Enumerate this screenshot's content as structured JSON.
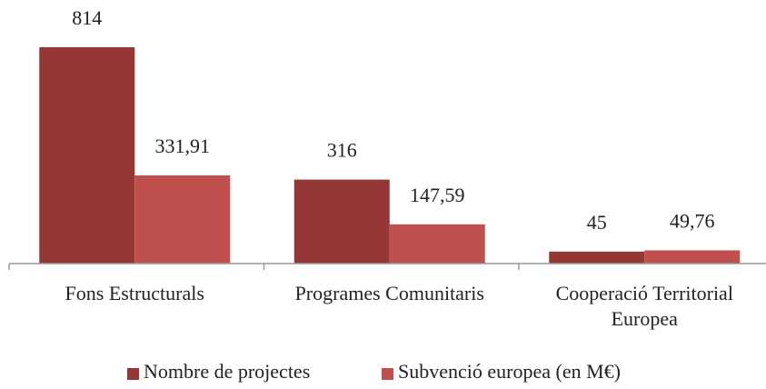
{
  "chart_data": {
    "type": "bar",
    "categories": [
      "Fons Estructurals",
      "Programes Comunitaris",
      "Cooperació Territorial Europea"
    ],
    "series": [
      {
        "name": "Nombre de projectes",
        "color": "#953735",
        "values": [
          814,
          316,
          45
        ]
      },
      {
        "name": "Subvenció europea (en M€)",
        "color": "#c0504d",
        "values": [
          331.91,
          147.59,
          49.76
        ],
        "value_labels": [
          "331,91",
          "147,59",
          "49,76"
        ]
      }
    ]
  }
}
